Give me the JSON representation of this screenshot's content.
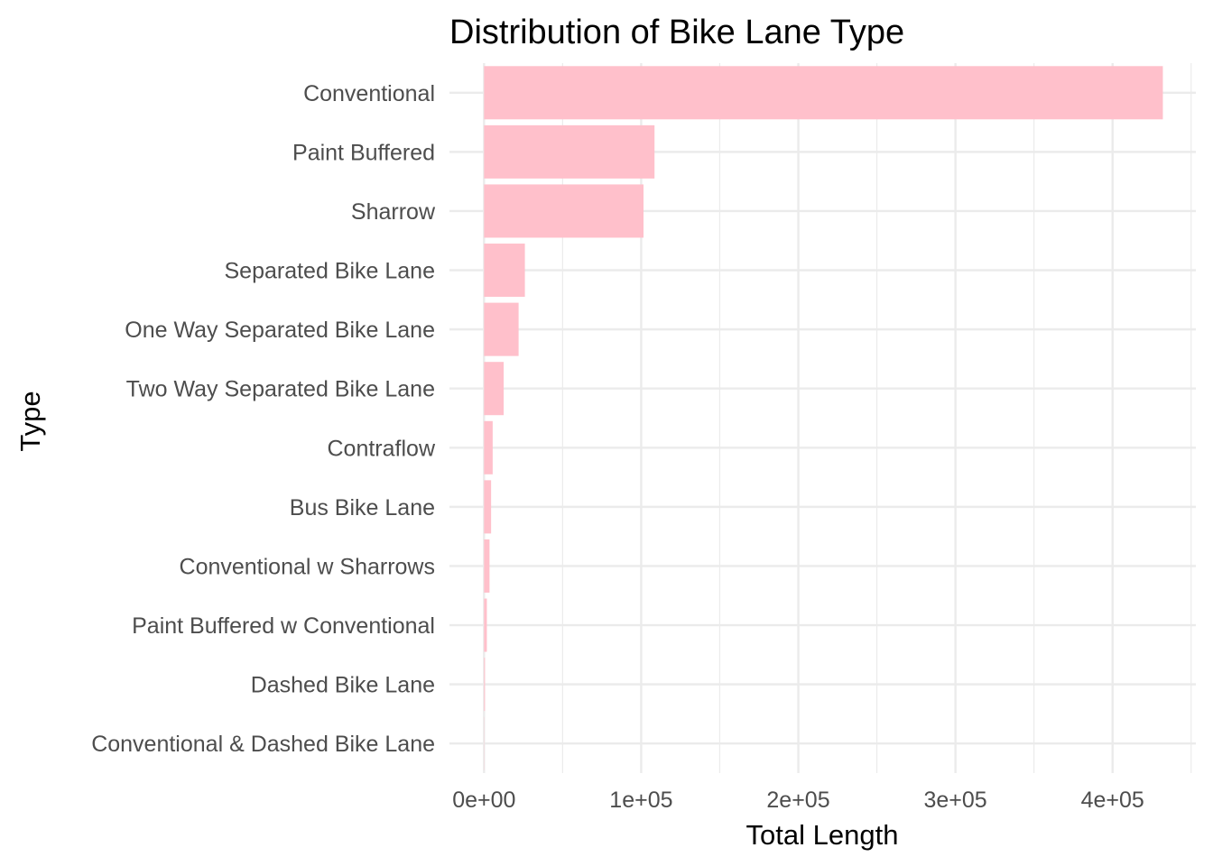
{
  "chart_data": {
    "type": "bar",
    "orientation": "horizontal",
    "title": "Distribution of Bike Lane Type",
    "xlabel": "Total Length",
    "ylabel": "Type",
    "categories": [
      "Conventional",
      "Paint Buffered",
      "Sharrow",
      "Separated Bike Lane",
      "One Way Separated Bike Lane",
      "Two Way Separated Bike Lane",
      "Contraflow",
      "Bus Bike Lane",
      "Conventional w Sharrows",
      "Paint Buffered w Conventional",
      "Dashed Bike Lane",
      "Conventional & Dashed Bike Lane"
    ],
    "values": [
      432000,
      108500,
      101500,
      26000,
      22000,
      12500,
      5500,
      4500,
      3500,
      1800,
      600,
      150
    ],
    "xlim": [
      -22000,
      453000
    ],
    "xticks": [
      0,
      100000,
      200000,
      300000,
      400000
    ],
    "xtick_labels": [
      "0e+00",
      "1e+05",
      "2e+05",
      "3e+05",
      "4e+05"
    ],
    "grid": true,
    "bar_color": "#FFC0CB"
  }
}
